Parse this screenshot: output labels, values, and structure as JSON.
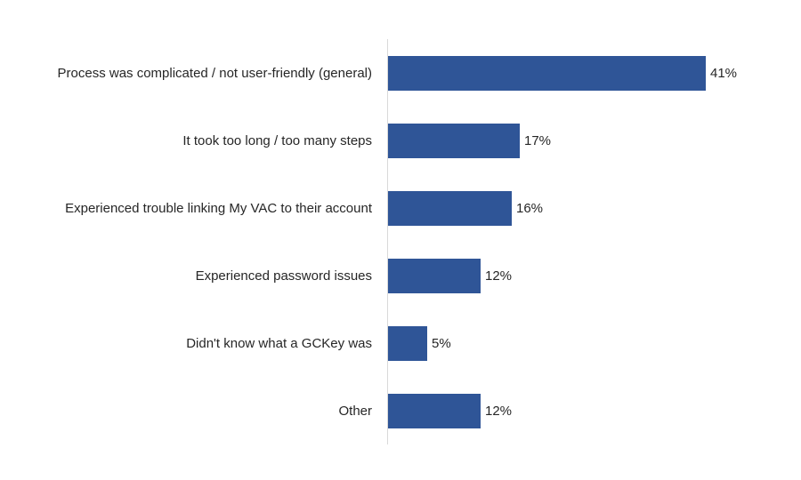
{
  "chart_data": {
    "type": "bar",
    "orientation": "horizontal",
    "title": "",
    "xlabel": "",
    "ylabel": "",
    "categories": [
      "Process was complicated / not user-friendly (general)",
      "It took too long / too many steps",
      "Experienced trouble linking My VAC to their account",
      "Experienced password issues",
      "Didn't know what a GCKey was",
      "Other"
    ],
    "values": [
      41,
      17,
      16,
      12,
      5,
      12
    ],
    "value_labels": [
      "41%",
      "17%",
      "16%",
      "12%",
      "5%",
      "12%"
    ],
    "unit": "%",
    "xlim": [
      0,
      45
    ],
    "grid": false,
    "legend": null,
    "bar_color": "#2f5597"
  },
  "bars": [
    {
      "label": "Process was complicated / not user-friendly (general)",
      "value": 41,
      "value_label": "41%"
    },
    {
      "label": "It took too long / too many steps",
      "value": 17,
      "value_label": "17%"
    },
    {
      "label": "Experienced trouble linking My VAC to their account",
      "value": 16,
      "value_label": "16%"
    },
    {
      "label": "Experienced password issues",
      "value": 12,
      "value_label": "12%"
    },
    {
      "label": "Didn't know what a GCKey was",
      "value": 5,
      "value_label": "5%"
    },
    {
      "label": "Other",
      "value": 12,
      "value_label": "12%"
    }
  ]
}
